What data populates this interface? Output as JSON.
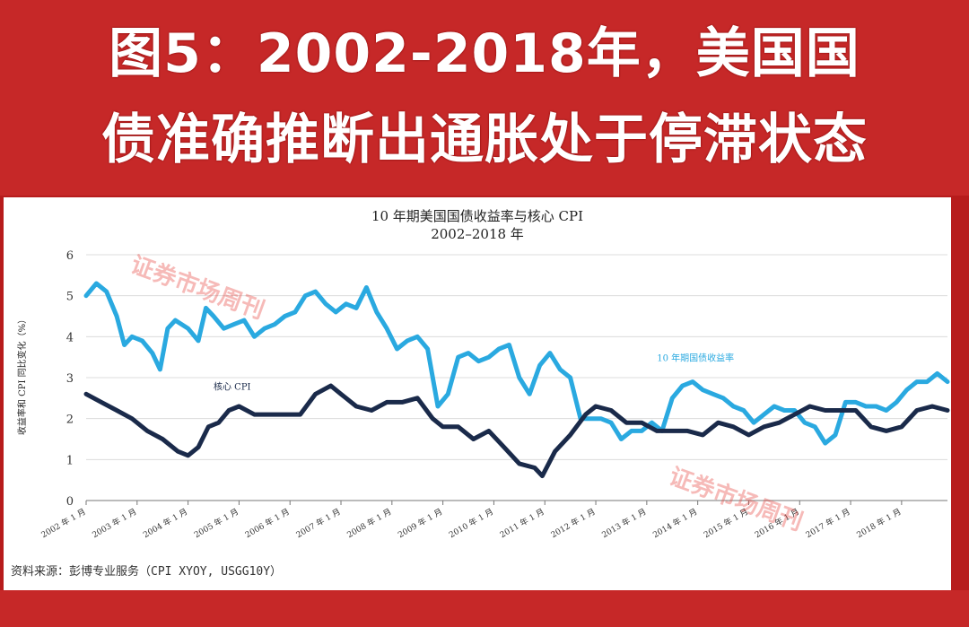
{
  "banner": {
    "line1": "图5：2002-2018年，美国国",
    "line2": "债准确推断出通胀处于停滞状态"
  },
  "source": "资料来源：彭博专业服务（CPI XYOY, USGG10Y）",
  "watermark": "证券市场周刊",
  "colors": {
    "background": "#b71c1c",
    "banner": "#c62828",
    "yield": "#2aa9e0",
    "cpi": "#1a2a4a"
  },
  "chart_data": {
    "type": "line",
    "title": "10 年期美国国债收益率与核心 CPI",
    "subtitle": "2002–2018 年",
    "ylabel": "收益率和 CPI 同比变化（%）",
    "xlabel": "",
    "ylim": [
      0,
      6
    ],
    "yticks": [
      0,
      1,
      2,
      3,
      4,
      5,
      6
    ],
    "grid": true,
    "x_ticks": [
      "2002 年 1 月",
      "2003 年 1 月",
      "2004 年 1 月",
      "2005 年 1 月",
      "2006 年 1 月",
      "2007 年 1 月",
      "2008 年 1 月",
      "2009 年 1 月",
      "2010 年 1 月",
      "2011 年 1 月",
      "2012 年 1 月",
      "2013 年 1 月",
      "2014 年 1 月",
      "2015 年 1 月",
      "2016 年 1 月",
      "2017 年 1 月",
      "2018 年 1 月"
    ],
    "x_range": [
      2002.0,
      2018.9
    ],
    "series": [
      {
        "name": "10 年期国债收益率",
        "color": "#2aa9e0",
        "points": [
          [
            2002.0,
            5.0
          ],
          [
            2002.2,
            5.3
          ],
          [
            2002.4,
            5.1
          ],
          [
            2002.6,
            4.5
          ],
          [
            2002.75,
            3.8
          ],
          [
            2002.9,
            4.0
          ],
          [
            2003.1,
            3.9
          ],
          [
            2003.3,
            3.6
          ],
          [
            2003.45,
            3.2
          ],
          [
            2003.6,
            4.2
          ],
          [
            2003.75,
            4.4
          ],
          [
            2004.0,
            4.2
          ],
          [
            2004.2,
            3.9
          ],
          [
            2004.35,
            4.7
          ],
          [
            2004.5,
            4.5
          ],
          [
            2004.7,
            4.2
          ],
          [
            2004.9,
            4.3
          ],
          [
            2005.1,
            4.4
          ],
          [
            2005.3,
            4.0
          ],
          [
            2005.5,
            4.2
          ],
          [
            2005.7,
            4.3
          ],
          [
            2005.9,
            4.5
          ],
          [
            2006.1,
            4.6
          ],
          [
            2006.3,
            5.0
          ],
          [
            2006.5,
            5.1
          ],
          [
            2006.7,
            4.8
          ],
          [
            2006.9,
            4.6
          ],
          [
            2007.1,
            4.8
          ],
          [
            2007.3,
            4.7
          ],
          [
            2007.5,
            5.2
          ],
          [
            2007.7,
            4.6
          ],
          [
            2007.9,
            4.2
          ],
          [
            2008.1,
            3.7
          ],
          [
            2008.3,
            3.9
          ],
          [
            2008.5,
            4.0
          ],
          [
            2008.7,
            3.7
          ],
          [
            2008.9,
            2.3
          ],
          [
            2009.1,
            2.6
          ],
          [
            2009.3,
            3.5
          ],
          [
            2009.5,
            3.6
          ],
          [
            2009.7,
            3.4
          ],
          [
            2009.9,
            3.5
          ],
          [
            2010.1,
            3.7
          ],
          [
            2010.3,
            3.8
          ],
          [
            2010.5,
            3.0
          ],
          [
            2010.7,
            2.6
          ],
          [
            2010.9,
            3.3
          ],
          [
            2011.1,
            3.6
          ],
          [
            2011.3,
            3.2
          ],
          [
            2011.5,
            3.0
          ],
          [
            2011.7,
            2.0
          ],
          [
            2011.9,
            2.0
          ],
          [
            2012.1,
            2.0
          ],
          [
            2012.3,
            1.9
          ],
          [
            2012.5,
            1.5
          ],
          [
            2012.7,
            1.7
          ],
          [
            2012.9,
            1.7
          ],
          [
            2013.1,
            1.9
          ],
          [
            2013.3,
            1.7
          ],
          [
            2013.5,
            2.5
          ],
          [
            2013.7,
            2.8
          ],
          [
            2013.9,
            2.9
          ],
          [
            2014.1,
            2.7
          ],
          [
            2014.3,
            2.6
          ],
          [
            2014.5,
            2.5
          ],
          [
            2014.7,
            2.3
          ],
          [
            2014.9,
            2.2
          ],
          [
            2015.1,
            1.9
          ],
          [
            2015.3,
            2.1
          ],
          [
            2015.5,
            2.3
          ],
          [
            2015.7,
            2.2
          ],
          [
            2015.9,
            2.2
          ],
          [
            2016.1,
            1.9
          ],
          [
            2016.3,
            1.8
          ],
          [
            2016.5,
            1.4
          ],
          [
            2016.7,
            1.6
          ],
          [
            2016.9,
            2.4
          ],
          [
            2017.1,
            2.4
          ],
          [
            2017.3,
            2.3
          ],
          [
            2017.5,
            2.3
          ],
          [
            2017.7,
            2.2
          ],
          [
            2017.9,
            2.4
          ],
          [
            2018.1,
            2.7
          ],
          [
            2018.3,
            2.9
          ],
          [
            2018.5,
            2.9
          ],
          [
            2018.7,
            3.1
          ],
          [
            2018.9,
            2.9
          ]
        ]
      },
      {
        "name": "核心 CPI",
        "color": "#1a2a4a",
        "points": [
          [
            2002.0,
            2.6
          ],
          [
            2002.3,
            2.4
          ],
          [
            2002.6,
            2.2
          ],
          [
            2002.9,
            2.0
          ],
          [
            2003.2,
            1.7
          ],
          [
            2003.5,
            1.5
          ],
          [
            2003.8,
            1.2
          ],
          [
            2004.0,
            1.1
          ],
          [
            2004.2,
            1.3
          ],
          [
            2004.4,
            1.8
          ],
          [
            2004.6,
            1.9
          ],
          [
            2004.8,
            2.2
          ],
          [
            2005.0,
            2.3
          ],
          [
            2005.3,
            2.1
          ],
          [
            2005.6,
            2.1
          ],
          [
            2005.9,
            2.1
          ],
          [
            2006.2,
            2.1
          ],
          [
            2006.5,
            2.6
          ],
          [
            2006.8,
            2.8
          ],
          [
            2007.0,
            2.6
          ],
          [
            2007.3,
            2.3
          ],
          [
            2007.6,
            2.2
          ],
          [
            2007.9,
            2.4
          ],
          [
            2008.2,
            2.4
          ],
          [
            2008.5,
            2.5
          ],
          [
            2008.8,
            2.0
          ],
          [
            2009.0,
            1.8
          ],
          [
            2009.3,
            1.8
          ],
          [
            2009.6,
            1.5
          ],
          [
            2009.9,
            1.7
          ],
          [
            2010.2,
            1.3
          ],
          [
            2010.5,
            0.9
          ],
          [
            2010.8,
            0.8
          ],
          [
            2010.95,
            0.6
          ],
          [
            2011.2,
            1.2
          ],
          [
            2011.5,
            1.6
          ],
          [
            2011.8,
            2.1
          ],
          [
            2012.0,
            2.3
          ],
          [
            2012.3,
            2.2
          ],
          [
            2012.6,
            1.9
          ],
          [
            2012.9,
            1.9
          ],
          [
            2013.2,
            1.7
          ],
          [
            2013.5,
            1.7
          ],
          [
            2013.8,
            1.7
          ],
          [
            2014.1,
            1.6
          ],
          [
            2014.4,
            1.9
          ],
          [
            2014.7,
            1.8
          ],
          [
            2015.0,
            1.6
          ],
          [
            2015.3,
            1.8
          ],
          [
            2015.6,
            1.9
          ],
          [
            2015.9,
            2.1
          ],
          [
            2016.2,
            2.3
          ],
          [
            2016.5,
            2.2
          ],
          [
            2016.8,
            2.2
          ],
          [
            2017.1,
            2.2
          ],
          [
            2017.4,
            1.8
          ],
          [
            2017.7,
            1.7
          ],
          [
            2018.0,
            1.8
          ],
          [
            2018.3,
            2.2
          ],
          [
            2018.6,
            2.3
          ],
          [
            2018.9,
            2.2
          ]
        ]
      }
    ],
    "annotations": [
      {
        "text": "10 年期国债收益率",
        "series": 0,
        "x": 2013.2,
        "y": 3.4
      },
      {
        "text": "核心 CPI",
        "series": 1,
        "x": 2004.5,
        "y": 2.7
      }
    ]
  }
}
